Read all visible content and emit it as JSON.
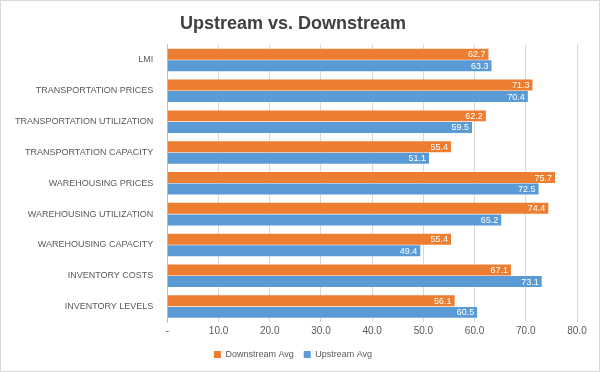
{
  "chart_data": {
    "type": "bar",
    "orientation": "horizontal",
    "title": "Upstream vs. Downstream",
    "categories": [
      "LMI",
      "TRANSPORTATION PRICES",
      "TRANSPORTATION UTILIZATION",
      "TRANSPORTATION CAPACITY",
      "WAREHOUSING PRICES",
      "WAREHOUSING UTILIZATION",
      "WAREHOUSING CAPACITY",
      "INVENTORY COSTS",
      "INVENTORY LEVELS"
    ],
    "series": [
      {
        "name": "Downstream Avg",
        "color": "#ED7D31",
        "values": [
          62.7,
          71.3,
          62.2,
          55.4,
          75.7,
          74.4,
          55.4,
          67.1,
          56.1
        ]
      },
      {
        "name": "Upstream Avg",
        "color": "#5B9BD5",
        "values": [
          63.3,
          70.4,
          59.5,
          51.1,
          72.5,
          65.2,
          49.4,
          73.1,
          60.5
        ]
      }
    ],
    "xlim": [
      0,
      80
    ],
    "xticks": [
      {
        "value": 0,
        "label": "-"
      },
      {
        "value": 10,
        "label": "10.0"
      },
      {
        "value": 20,
        "label": "20.0"
      },
      {
        "value": 30,
        "label": "30.0"
      },
      {
        "value": 40,
        "label": "40.0"
      },
      {
        "value": 50,
        "label": "50.0"
      },
      {
        "value": 60,
        "label": "60.0"
      },
      {
        "value": 70,
        "label": "70.0"
      },
      {
        "value": 80,
        "label": "80.0"
      }
    ],
    "grid": true,
    "legend": "bottom",
    "data_labels": true
  }
}
